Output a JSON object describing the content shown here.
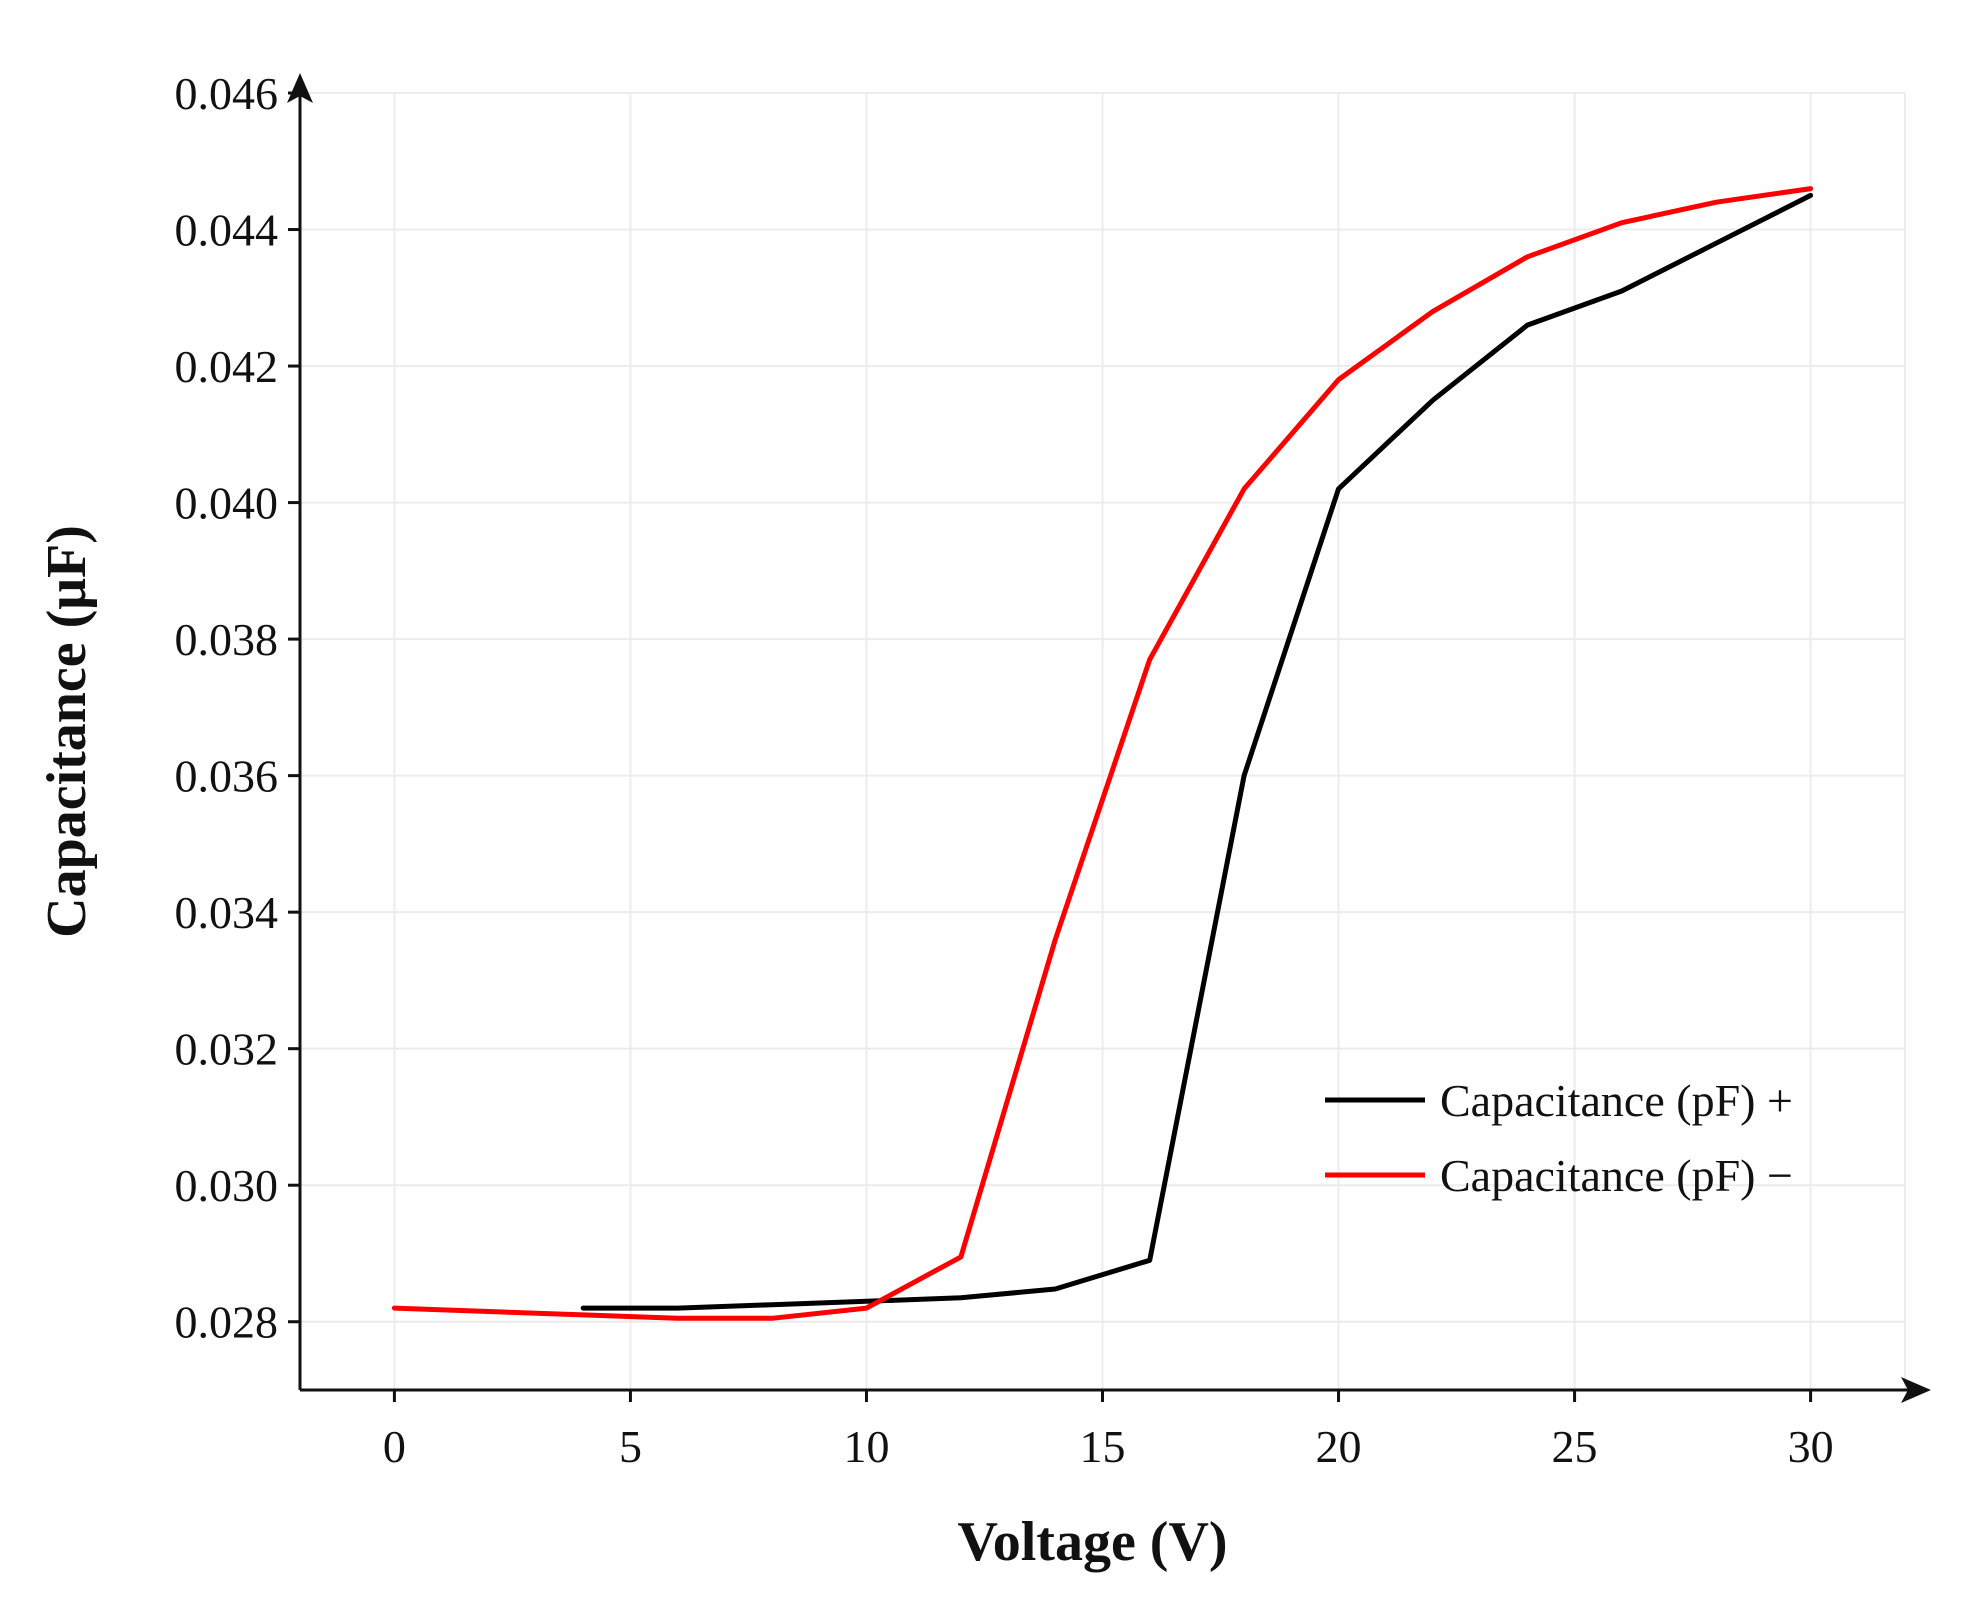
{
  "chart_data": {
    "type": "line",
    "title": "",
    "xlabel": "Voltage (V)",
    "ylabel": "Capacitance (μF)",
    "xlim": [
      -2,
      32
    ],
    "ylim": [
      0.027,
      0.046
    ],
    "x_ticks": [
      0,
      5,
      10,
      15,
      20,
      25,
      30
    ],
    "y_ticks": [
      0.028,
      0.03,
      0.032,
      0.034,
      0.036,
      0.038,
      0.04,
      0.042,
      0.044,
      0.046
    ],
    "x_tick_labels": [
      "0",
      "5",
      "10",
      "15",
      "20",
      "25",
      "30"
    ],
    "y_tick_labels": [
      "0.028",
      "0.030",
      "0.032",
      "0.034",
      "0.036",
      "0.038",
      "0.040",
      "0.042",
      "0.044",
      "0.046"
    ],
    "grid": true,
    "legend_position": "bottom-right",
    "series": [
      {
        "name": "Capacitance (pF) +",
        "color": "#000000",
        "x": [
          4,
          6,
          8,
          10,
          12,
          14,
          16,
          18,
          20,
          22,
          24,
          26,
          28,
          30
        ],
        "y": [
          0.0282,
          0.0282,
          0.02825,
          0.0283,
          0.02835,
          0.02848,
          0.0289,
          0.036,
          0.0402,
          0.0415,
          0.0426,
          0.0431,
          0.0438,
          0.0445
        ]
      },
      {
        "name": "Capacitance (pF) −",
        "color": "#ff0000",
        "x": [
          0,
          2,
          4,
          6,
          8,
          10,
          12,
          14,
          16,
          18,
          20,
          22,
          24,
          26,
          28,
          30
        ],
        "y": [
          0.0282,
          0.02815,
          0.0281,
          0.02805,
          0.02805,
          0.0282,
          0.02895,
          0.0336,
          0.0377,
          0.0402,
          0.0418,
          0.0428,
          0.0436,
          0.0441,
          0.0444,
          0.0446
        ]
      }
    ]
  }
}
